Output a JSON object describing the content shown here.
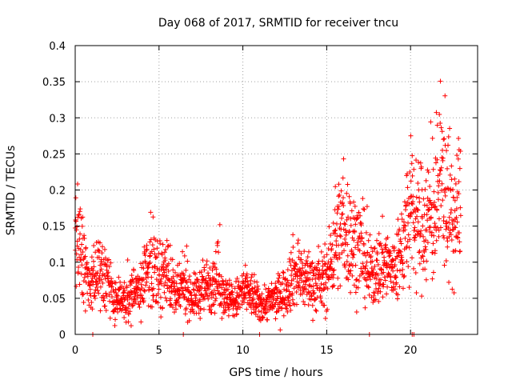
{
  "chart_data": {
    "type": "scatter",
    "title": "Day 068 of 2017, SRMTID for receiver tncu",
    "xlabel": "GPS time / hours",
    "ylabel": "SRMTID / TECUs",
    "xlim": [
      0,
      24
    ],
    "ylim": [
      0,
      0.4
    ],
    "x_ticks": [
      "0",
      "5",
      "10",
      "15",
      "20"
    ],
    "y_ticks": [
      "0",
      "0.05",
      "0.1",
      "0.15",
      "0.2",
      "0.25",
      "0.3",
      "0.35",
      "0.4"
    ],
    "grid": true,
    "marker": "+",
    "color": "#ff0000",
    "series": [
      {
        "name": "SRMTID",
        "trend": [
          [
            0.0,
            0.15
          ],
          [
            0.3,
            0.12
          ],
          [
            0.6,
            0.09
          ],
          [
            1.0,
            0.08
          ],
          [
            1.5,
            0.085
          ],
          [
            2.0,
            0.07
          ],
          [
            2.3,
            0.05
          ],
          [
            3.0,
            0.045
          ],
          [
            3.5,
            0.055
          ],
          [
            4.0,
            0.07
          ],
          [
            4.5,
            0.1
          ],
          [
            5.0,
            0.08
          ],
          [
            5.5,
            0.09
          ],
          [
            6.0,
            0.05
          ],
          [
            6.5,
            0.07
          ],
          [
            7.0,
            0.05
          ],
          [
            7.5,
            0.06
          ],
          [
            8.0,
            0.07
          ],
          [
            8.5,
            0.08
          ],
          [
            9.0,
            0.05
          ],
          [
            9.5,
            0.045
          ],
          [
            10.0,
            0.06
          ],
          [
            10.5,
            0.055
          ],
          [
            11.0,
            0.04
          ],
          [
            11.5,
            0.045
          ],
          [
            12.0,
            0.05
          ],
          [
            12.5,
            0.06
          ],
          [
            13.0,
            0.085
          ],
          [
            13.5,
            0.08
          ],
          [
            14.0,
            0.075
          ],
          [
            14.5,
            0.07
          ],
          [
            15.0,
            0.075
          ],
          [
            15.5,
            0.13
          ],
          [
            16.0,
            0.15
          ],
          [
            16.5,
            0.13
          ],
          [
            17.0,
            0.12
          ],
          [
            17.5,
            0.085
          ],
          [
            18.0,
            0.09
          ],
          [
            18.5,
            0.1
          ],
          [
            19.0,
            0.085
          ],
          [
            19.5,
            0.12
          ],
          [
            20.0,
            0.17
          ],
          [
            20.5,
            0.15
          ],
          [
            21.0,
            0.16
          ],
          [
            21.5,
            0.17
          ],
          [
            22.0,
            0.22
          ],
          [
            22.5,
            0.15
          ],
          [
            23.0,
            0.18
          ]
        ],
        "zero_points": [
          1.05,
          6.45,
          11.0,
          17.55,
          20.1,
          20.2
        ]
      }
    ]
  }
}
